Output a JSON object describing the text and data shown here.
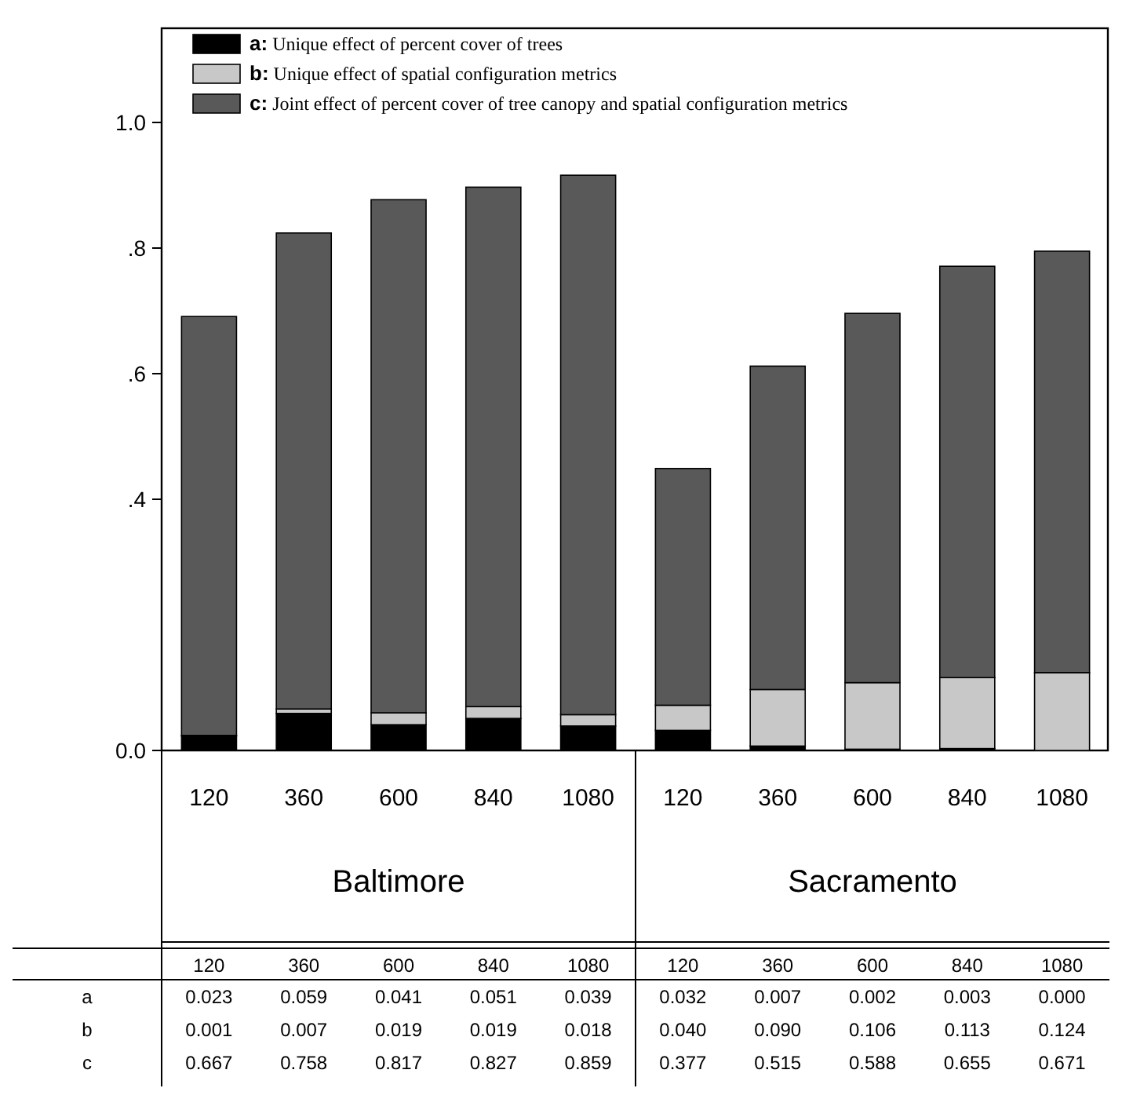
{
  "chart_data": {
    "type": "bar",
    "stacked": true,
    "categories": [
      "120",
      "360",
      "600",
      "840",
      "1080",
      "120",
      "360",
      "600",
      "840",
      "1080"
    ],
    "series": [
      {
        "name": "a: Unique effect of percent cover of trees",
        "color": "#000000",
        "values": [
          0.023,
          0.059,
          0.041,
          0.051,
          0.039,
          0.032,
          0.007,
          0.002,
          0.003,
          0.0
        ],
        "value_labels": [
          "0.023",
          "0.059",
          "0.041",
          "0.051",
          "0.039",
          "0.032",
          "0.007",
          "0.002",
          "0.003",
          "0.000"
        ]
      },
      {
        "name": "b: Unique effect of spatial configuration metrics",
        "color": "#c8c8c8",
        "values": [
          0.001,
          0.007,
          0.019,
          0.019,
          0.018,
          0.04,
          0.09,
          0.106,
          0.113,
          0.124
        ],
        "value_labels": [
          "0.001",
          "0.007",
          "0.019",
          "0.019",
          "0.018",
          "0.040",
          "0.090",
          "0.106",
          "0.113",
          "0.124"
        ]
      },
      {
        "name": "c: Joint effect of percent cover of tree canopy and spatial configuration metrics",
        "color": "#595959",
        "values": [
          0.667,
          0.758,
          0.817,
          0.827,
          0.859,
          0.377,
          0.515,
          0.588,
          0.655,
          0.671
        ],
        "value_labels": [
          "0.667",
          "0.758",
          "0.817",
          "0.827",
          "0.859",
          "0.377",
          "0.515",
          "0.588",
          "0.655",
          "0.671"
        ]
      }
    ],
    "ylim": [
      0,
      1.15
    ],
    "yticks": [
      {
        "value": 0,
        "label": "0.0"
      },
      {
        "value": 0.4,
        "label": ".4"
      },
      {
        "value": 0.6,
        "label": ".6"
      },
      {
        "value": 0.8,
        "label": ".8"
      },
      {
        "value": 1.0,
        "label": "1.0"
      }
    ],
    "annotations": [
      "Baltimore",
      "Sacramento",
      "a",
      "b",
      "c"
    ],
    "legend": "top left",
    "grid": false
  }
}
